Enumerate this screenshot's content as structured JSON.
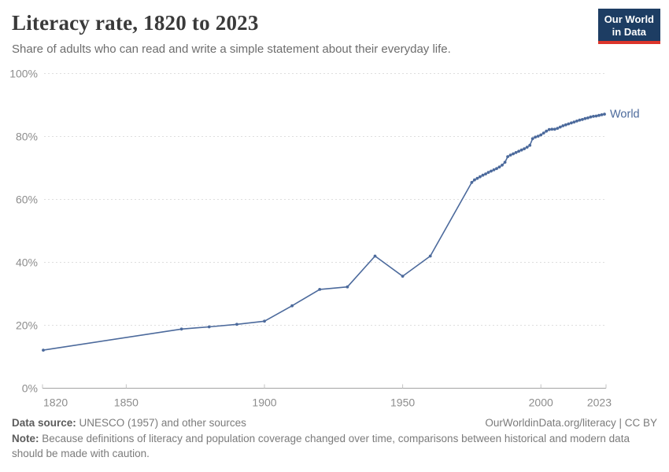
{
  "header": {
    "title": "Literacy rate, 1820 to 2023",
    "subtitle": "Share of adults who can read and write a simple statement about their everyday life.",
    "logo": {
      "line1": "Our World",
      "line2": "in Data"
    }
  },
  "colors": {
    "accent_line": "#4c6a9c",
    "logo_bg": "#1d3d63",
    "logo_stripe": "#dc352b",
    "gridline": "#dedede",
    "axis": "#a3a3a3",
    "tick": "#c4c4c4",
    "axis_label": "#8d8d8d"
  },
  "chart_data": {
    "type": "line",
    "title": "Literacy rate, 1820 to 2023",
    "xlabel": "",
    "ylabel": "",
    "xlim": [
      1820,
      2023
    ],
    "ylim": [
      0,
      100
    ],
    "x_ticks": [
      1820,
      1850,
      1900,
      1950,
      2000,
      2023
    ],
    "y_ticks": [
      0,
      20,
      40,
      60,
      80,
      100
    ],
    "y_unit": "%",
    "grid": "horizontal-dashed",
    "legend_position": "right-of-line-end",
    "series": [
      {
        "name": "World",
        "color": "#4c6a9c",
        "points": [
          [
            1820,
            12.1
          ],
          [
            1870,
            18.8
          ],
          [
            1880,
            19.5
          ],
          [
            1890,
            20.3
          ],
          [
            1900,
            21.3
          ],
          [
            1910,
            26.2
          ],
          [
            1920,
            31.4
          ],
          [
            1930,
            32.2
          ],
          [
            1940,
            42.0
          ],
          [
            1950,
            35.6
          ],
          [
            1960,
            42.0
          ],
          [
            1975,
            65.4
          ],
          [
            1976,
            66.2
          ],
          [
            1977,
            66.7
          ],
          [
            1978,
            67.2
          ],
          [
            1979,
            67.7
          ],
          [
            1980,
            68.1
          ],
          [
            1981,
            68.6
          ],
          [
            1982,
            69.0
          ],
          [
            1983,
            69.4
          ],
          [
            1984,
            69.8
          ],
          [
            1985,
            70.3
          ],
          [
            1986,
            70.9
          ],
          [
            1987,
            71.8
          ],
          [
            1988,
            73.6
          ],
          [
            1989,
            74.1
          ],
          [
            1990,
            74.5
          ],
          [
            1991,
            74.9
          ],
          [
            1992,
            75.3
          ],
          [
            1993,
            75.7
          ],
          [
            1994,
            76.1
          ],
          [
            1995,
            76.6
          ],
          [
            1996,
            77.2
          ],
          [
            1997,
            79.3
          ],
          [
            1998,
            79.8
          ],
          [
            1999,
            80.1
          ],
          [
            2000,
            80.5
          ],
          [
            2001,
            81.1
          ],
          [
            2002,
            81.7
          ],
          [
            2003,
            82.2
          ],
          [
            2004,
            82.3
          ],
          [
            2005,
            82.3
          ],
          [
            2006,
            82.6
          ],
          [
            2007,
            83.0
          ],
          [
            2008,
            83.4
          ],
          [
            2009,
            83.7
          ],
          [
            2010,
            84.0
          ],
          [
            2011,
            84.3
          ],
          [
            2012,
            84.6
          ],
          [
            2013,
            84.9
          ],
          [
            2014,
            85.2
          ],
          [
            2015,
            85.4
          ],
          [
            2016,
            85.7
          ],
          [
            2017,
            85.9
          ],
          [
            2018,
            86.2
          ],
          [
            2019,
            86.4
          ],
          [
            2020,
            86.5
          ],
          [
            2021,
            86.7
          ],
          [
            2022,
            86.9
          ],
          [
            2023,
            87.1
          ]
        ]
      }
    ]
  },
  "footer": {
    "source_label": "Data source:",
    "source_text": " UNESCO (1957) and other sources",
    "license": "OurWorldinData.org/literacy | CC BY",
    "note_label": "Note:",
    "note_text": " Because definitions of literacy and population coverage changed over time, comparisons between historical and modern data should be made with caution."
  }
}
